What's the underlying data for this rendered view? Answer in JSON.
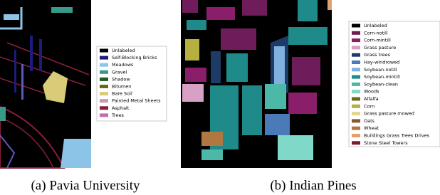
{
  "figures": [
    {
      "caption": "(a) Pavia University",
      "legend": [
        {
          "label": "Unlabeled",
          "color": "#000000"
        },
        {
          "label": "Self-Blocking Bricks",
          "color": "#1c1c7a"
        },
        {
          "label": "Meadows",
          "color": "#8cc4e8"
        },
        {
          "label": "Gravel",
          "color": "#3a9a8a"
        },
        {
          "label": "Shadow",
          "color": "#1e5a2a"
        },
        {
          "label": "Bitumen",
          "color": "#6b6a1a"
        },
        {
          "label": "Bare Soil",
          "color": "#d8cc78"
        },
        {
          "label": "Painted Metal Sheets",
          "color": "#c89ab0"
        },
        {
          "label": "Asphalt",
          "color": "#8a1e3a"
        },
        {
          "label": "Trees",
          "color": "#c070b0"
        }
      ]
    },
    {
      "caption": "(b) Indian Pines",
      "legend": [
        {
          "label": "Unlabeled",
          "color": "#000000"
        },
        {
          "label": "Corn-notill",
          "color": "#6e1d5a"
        },
        {
          "label": "Corn-mintill",
          "color": "#8a1e6a"
        },
        {
          "label": "Grass pasture",
          "color": "#d9a0c6"
        },
        {
          "label": "Grass trees",
          "color": "#1e3a66"
        },
        {
          "label": "Hay-windrowed",
          "color": "#4a7bb8"
        },
        {
          "label": "Soybean-notill",
          "color": "#7fb0de"
        },
        {
          "label": "Soybean-mintill",
          "color": "#1e8a8a"
        },
        {
          "label": "Soybean-clean",
          "color": "#4cb8a8"
        },
        {
          "label": "Woods",
          "color": "#80d8c8"
        },
        {
          "label": "Alfalfa",
          "color": "#6b6a1a"
        },
        {
          "label": "Corn",
          "color": "#b5b040"
        },
        {
          "label": "Grass pasture mowed",
          "color": "#e0d890"
        },
        {
          "label": "Oats",
          "color": "#8a5a2a"
        },
        {
          "label": "Wheat",
          "color": "#b07840"
        },
        {
          "label": "Buildings Grass Trees Drives",
          "color": "#e0a070"
        },
        {
          "label": "Stone Steel Towers",
          "color": "#7a1a30"
        }
      ]
    }
  ]
}
